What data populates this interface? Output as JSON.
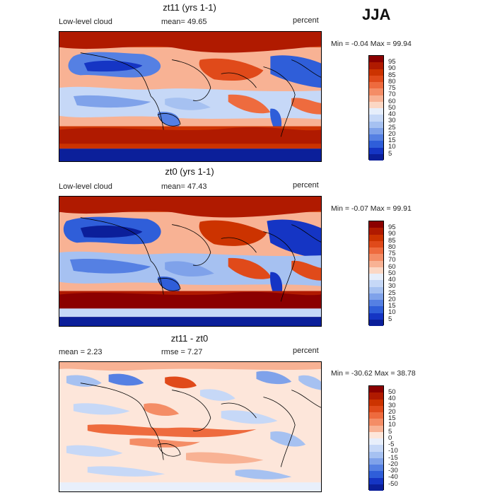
{
  "season": "JJA",
  "panels": [
    {
      "title": "zt11 (yrs 1-1)",
      "left_label": "Low-level cloud",
      "center_label": "mean=   49.65",
      "right_label": "percent",
      "minmax": "Min =   -0.04 Max =   99.94",
      "colorbar_labels": [
        "95",
        "90",
        "85",
        "80",
        "75",
        "70",
        "60",
        "50",
        "40",
        "30",
        "25",
        "20",
        "15",
        "10",
        "5"
      ]
    },
    {
      "title": "zt0 (yrs 1-1)",
      "left_label": "Low-level cloud",
      "center_label": "mean=   47.43",
      "right_label": "percent",
      "minmax": "Min =   -0.07 Max =   99.91",
      "colorbar_labels": [
        "95",
        "90",
        "85",
        "80",
        "75",
        "70",
        "60",
        "50",
        "40",
        "30",
        "25",
        "20",
        "15",
        "10",
        "5"
      ]
    },
    {
      "title": "zt11 - zt0",
      "left_label": "mean =    2.23",
      "center_label": "rmse =    7.27",
      "right_label": "percent",
      "minmax": "Min =  -30.62 Max =   38.78",
      "colorbar_labels": [
        "50",
        "40",
        "30",
        "20",
        "15",
        "10",
        "5",
        "0",
        "-5",
        "-10",
        "-15",
        "-20",
        "-30",
        "-40",
        "-50"
      ]
    }
  ],
  "colors": {
    "abs_scale": [
      "#8b0000",
      "#b01a00",
      "#cc3300",
      "#e04a1a",
      "#ee6b3e",
      "#f48d66",
      "#f8b294",
      "#fbd7c4",
      "#e6eefb",
      "#c6d8f7",
      "#a6c1f1",
      "#7fa2ea",
      "#5580e3",
      "#2f5ed9",
      "#1535c4",
      "#0b1f9a"
    ],
    "diff_scale": [
      "#8b0000",
      "#b01a00",
      "#cc3300",
      "#e04a1a",
      "#ee6b3e",
      "#f48d66",
      "#f8b294",
      "#fde6da",
      "#e8effb",
      "#c6d8f7",
      "#a6c1f1",
      "#7fa2ea",
      "#5580e3",
      "#2f5ed9",
      "#1535c4",
      "#0b1f9a"
    ]
  }
}
